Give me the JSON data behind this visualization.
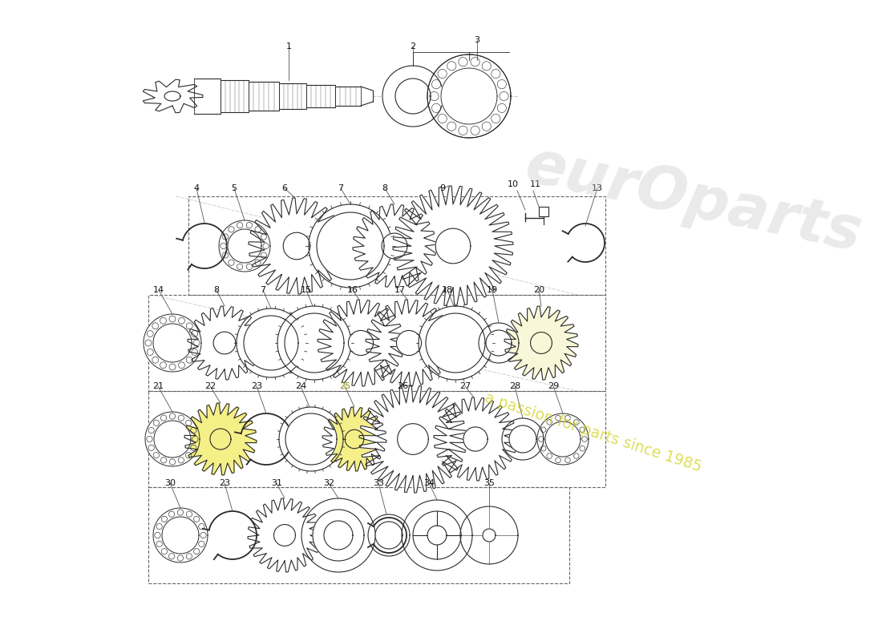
{
  "background_color": "#ffffff",
  "line_color": "#2a2a2a",
  "watermark1": "eurOparts",
  "watermark2": "a passion for parts since 1985",
  "wm_color1": "#c8c8c8",
  "wm_color2": "#cccc00",
  "figsize": [
    11.0,
    8.0
  ],
  "dpi": 100
}
